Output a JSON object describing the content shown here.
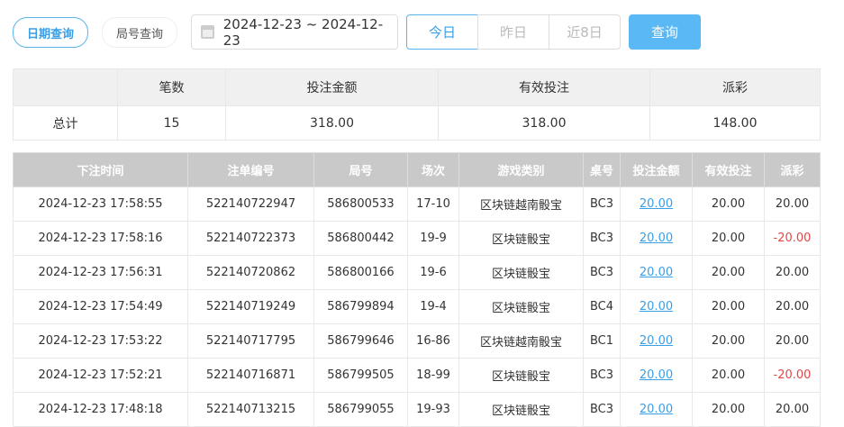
{
  "tabs": {
    "date_query": "日期查询",
    "round_query": "局号查询"
  },
  "date_range": "2024-12-23 ~ 2024-12-23",
  "quick": [
    "今日",
    "昨日",
    "近8日"
  ],
  "query_button": "查询",
  "summary": {
    "headers": [
      "",
      "笔数",
      "投注金额",
      "有效投注",
      "派彩"
    ],
    "row": [
      "总计",
      "15",
      "318.00",
      "318.00",
      "148.00"
    ]
  },
  "table": {
    "headers": [
      "下注时间",
      "注单编号",
      "局号",
      "场次",
      "游戏类别",
      "桌号",
      "投注金额",
      "有效投注",
      "派彩"
    ],
    "rows": [
      [
        "2024-12-23 17:58:55",
        "522140722947",
        "586800533",
        "17-10",
        "区块链越南骰宝",
        "BC3",
        "20.00",
        "20.00",
        "20.00"
      ],
      [
        "2024-12-23 17:58:16",
        "522140722373",
        "586800442",
        "19-9",
        "区块链骰宝",
        "BC3",
        "20.00",
        "20.00",
        "-20.00"
      ],
      [
        "2024-12-23 17:56:31",
        "522140720862",
        "586800166",
        "19-6",
        "区块链骰宝",
        "BC3",
        "20.00",
        "20.00",
        "20.00"
      ],
      [
        "2024-12-23 17:54:49",
        "522140719249",
        "586799894",
        "19-4",
        "区块链骰宝",
        "BC4",
        "20.00",
        "20.00",
        "20.00"
      ],
      [
        "2024-12-23 17:53:22",
        "522140717795",
        "586799646",
        "16-86",
        "区块链越南骰宝",
        "BC1",
        "20.00",
        "20.00",
        "20.00"
      ],
      [
        "2024-12-23 17:52:21",
        "522140716871",
        "586799505",
        "18-99",
        "区块链骰宝",
        "BC3",
        "20.00",
        "20.00",
        "-20.00"
      ],
      [
        "2024-12-23 17:48:18",
        "522140713215",
        "586799055",
        "19-93",
        "区块链骰宝",
        "BC3",
        "20.00",
        "20.00",
        "20.00"
      ]
    ]
  },
  "colors": {
    "accent": "#3a9ee6",
    "negative": "#e84545"
  }
}
